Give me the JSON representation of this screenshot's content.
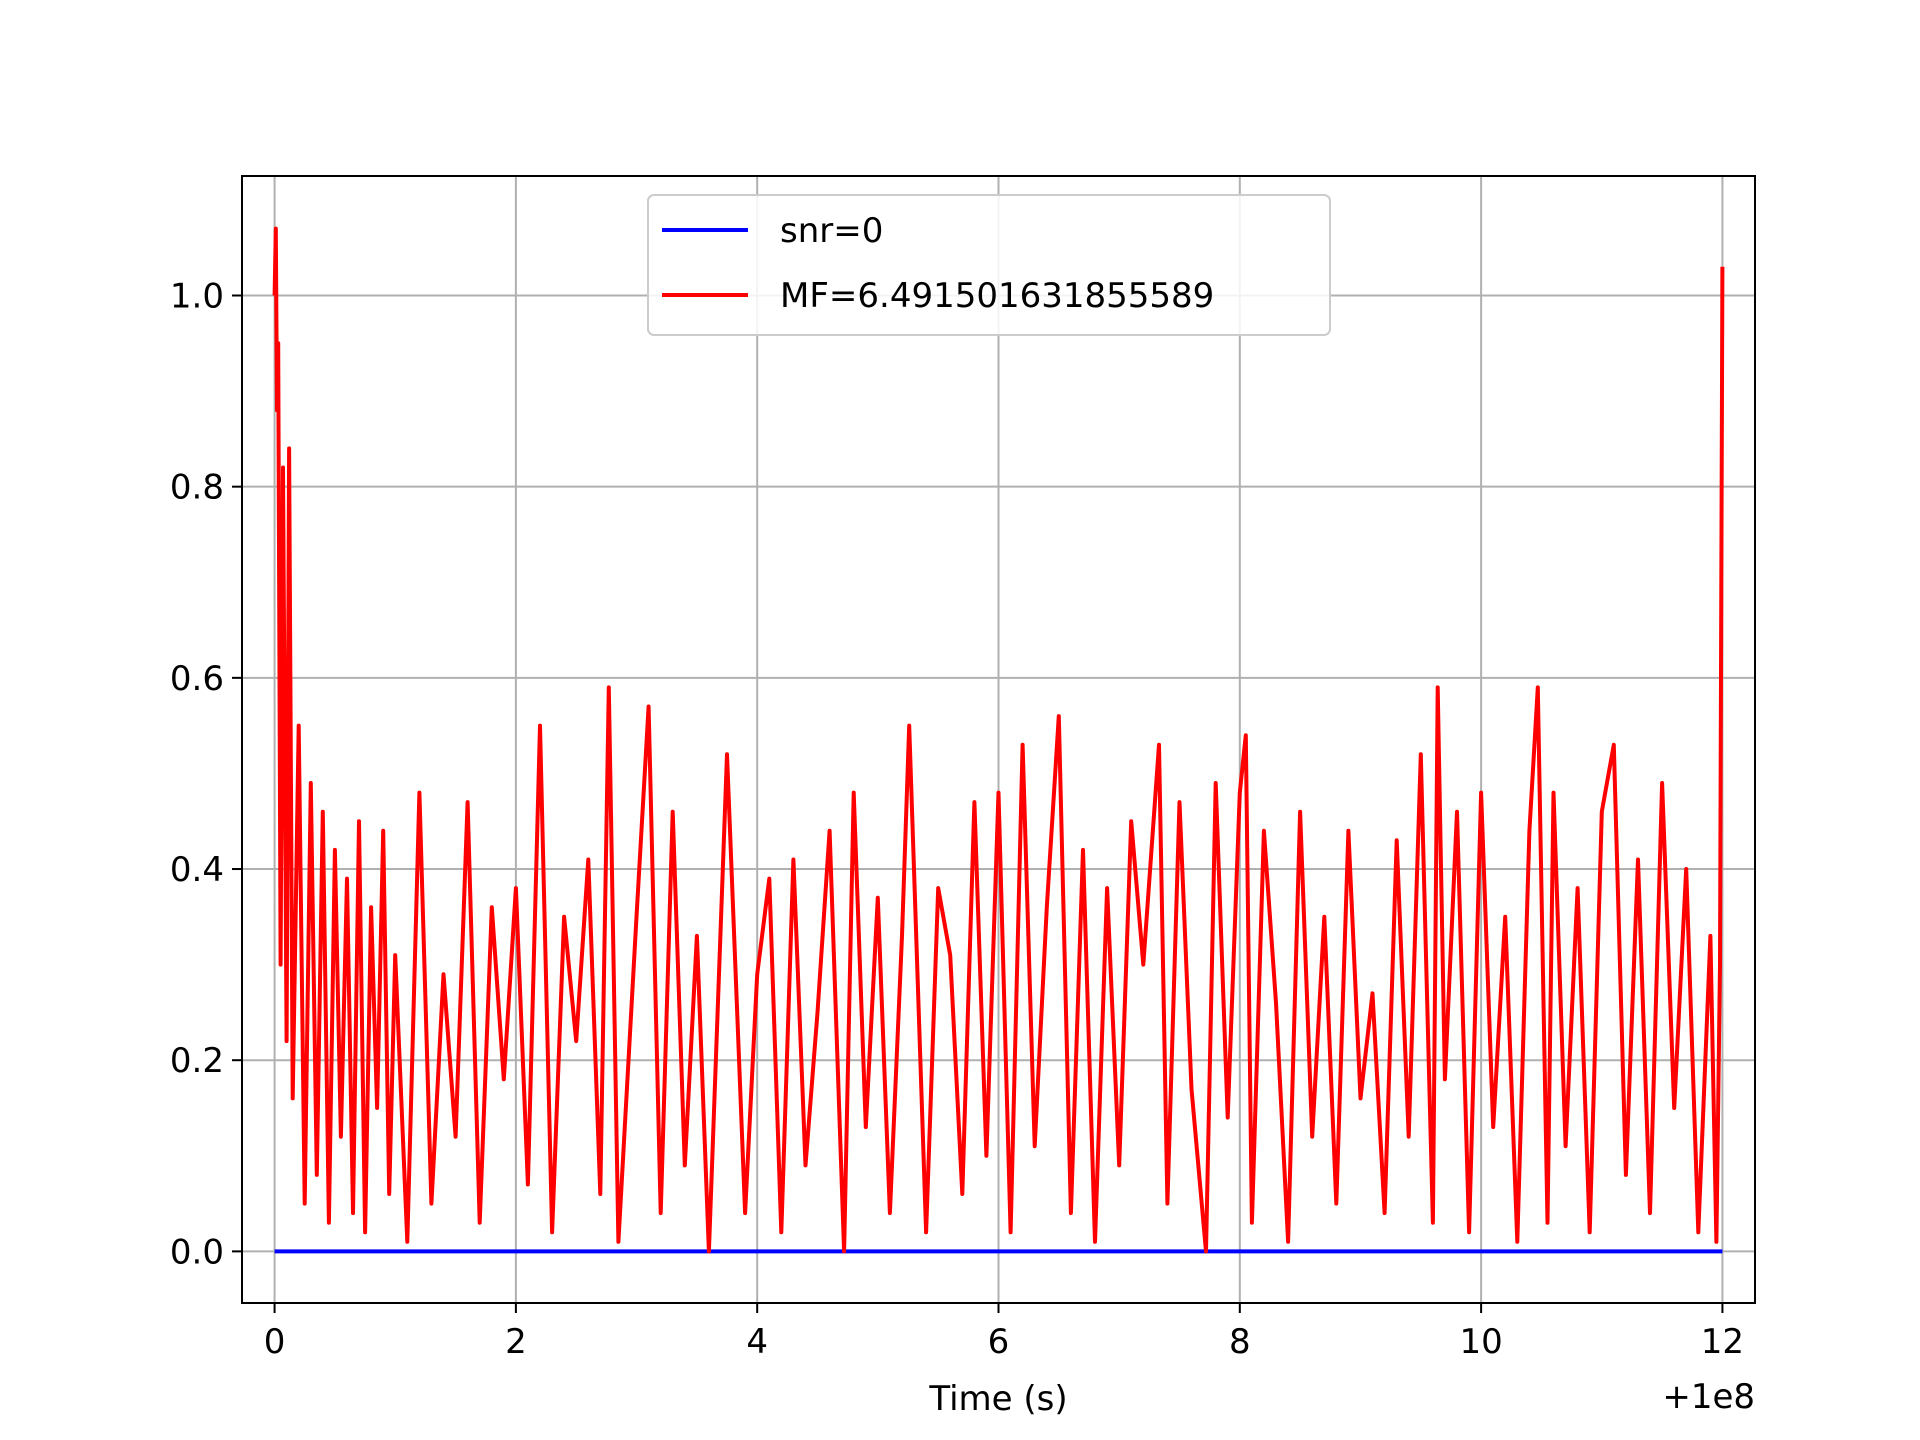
{
  "chart_data": {
    "type": "line",
    "title": "",
    "xlabel": "Time (s)",
    "ylabel": "",
    "x_offset_label": "+1e8",
    "xlim": [
      -0.27,
      12.27
    ],
    "ylim": [
      -0.054,
      1.125
    ],
    "xticks": [
      0,
      2,
      4,
      6,
      8,
      10,
      12
    ],
    "yticks": [
      0.0,
      0.2,
      0.4,
      0.6,
      0.8,
      1.0
    ],
    "xtick_labels": [
      "0",
      "2",
      "4",
      "6",
      "8",
      "10",
      "12"
    ],
    "ytick_labels": [
      "0.0",
      "0.2",
      "0.4",
      "0.6",
      "0.8",
      "1.0"
    ],
    "grid": true,
    "legend_placement": "upper-center",
    "series": [
      {
        "name": "snr=0",
        "color": "#0000ff",
        "x": [
          0,
          12
        ],
        "y": [
          0.0,
          0.0
        ]
      },
      {
        "name": "MF=6.491501631855589",
        "color": "#ff0000",
        "x": [
          0,
          0.01,
          0.02,
          0.03,
          0.05,
          0.07,
          0.1,
          0.12,
          0.15,
          0.2,
          0.25,
          0.3,
          0.35,
          0.4,
          0.45,
          0.5,
          0.55,
          0.6,
          0.65,
          0.7,
          0.75,
          0.8,
          0.85,
          0.9,
          0.95,
          1.0,
          1.1,
          1.2,
          1.3,
          1.4,
          1.5,
          1.6,
          1.7,
          1.8,
          1.9,
          2.0,
          2.1,
          2.2,
          2.3,
          2.4,
          2.5,
          2.6,
          2.7,
          2.77,
          2.85,
          3.0,
          3.1,
          3.2,
          3.3,
          3.4,
          3.5,
          3.6,
          3.75,
          3.9,
          4.0,
          4.1,
          4.2,
          4.3,
          4.4,
          4.5,
          4.6,
          4.72,
          4.8,
          4.9,
          5.0,
          5.1,
          5.2,
          5.26,
          5.4,
          5.5,
          5.6,
          5.7,
          5.8,
          5.9,
          6.0,
          6.1,
          6.2,
          6.3,
          6.4,
          6.5,
          6.6,
          6.7,
          6.8,
          6.9,
          7.0,
          7.1,
          7.2,
          7.33,
          7.4,
          7.5,
          7.6,
          7.72,
          7.8,
          7.9,
          8.0,
          8.05,
          8.1,
          8.2,
          8.3,
          8.4,
          8.5,
          8.6,
          8.7,
          8.8,
          8.9,
          9.0,
          9.1,
          9.2,
          9.3,
          9.4,
          9.5,
          9.6,
          9.64,
          9.7,
          9.8,
          9.9,
          10.0,
          10.1,
          10.2,
          10.3,
          10.4,
          10.47,
          10.55,
          10.6,
          10.7,
          10.8,
          10.9,
          11.0,
          11.1,
          11.2,
          11.3,
          11.4,
          11.5,
          11.6,
          11.7,
          11.8,
          11.9,
          11.95,
          11.98,
          12.0
        ],
        "y": [
          1.0,
          1.07,
          0.88,
          0.95,
          0.3,
          0.82,
          0.22,
          0.84,
          0.16,
          0.55,
          0.05,
          0.49,
          0.08,
          0.46,
          0.03,
          0.42,
          0.12,
          0.39,
          0.04,
          0.45,
          0.02,
          0.36,
          0.15,
          0.44,
          0.06,
          0.31,
          0.01,
          0.48,
          0.05,
          0.29,
          0.12,
          0.47,
          0.03,
          0.36,
          0.18,
          0.38,
          0.07,
          0.55,
          0.02,
          0.35,
          0.22,
          0.41,
          0.06,
          0.59,
          0.01,
          0.35,
          0.57,
          0.04,
          0.46,
          0.09,
          0.33,
          0.0,
          0.52,
          0.04,
          0.29,
          0.39,
          0.02,
          0.41,
          0.09,
          0.25,
          0.44,
          0.0,
          0.48,
          0.13,
          0.37,
          0.04,
          0.33,
          0.55,
          0.02,
          0.38,
          0.31,
          0.06,
          0.47,
          0.1,
          0.48,
          0.02,
          0.53,
          0.11,
          0.36,
          0.56,
          0.04,
          0.42,
          0.01,
          0.38,
          0.09,
          0.45,
          0.3,
          0.53,
          0.05,
          0.47,
          0.17,
          0.0,
          0.49,
          0.14,
          0.48,
          0.54,
          0.03,
          0.44,
          0.26,
          0.01,
          0.46,
          0.12,
          0.35,
          0.05,
          0.44,
          0.16,
          0.27,
          0.04,
          0.43,
          0.12,
          0.52,
          0.03,
          0.59,
          0.18,
          0.46,
          0.02,
          0.48,
          0.13,
          0.35,
          0.01,
          0.44,
          0.59,
          0.03,
          0.48,
          0.11,
          0.38,
          0.02,
          0.46,
          0.53,
          0.08,
          0.41,
          0.04,
          0.49,
          0.15,
          0.4,
          0.02,
          0.33,
          0.01,
          0.3,
          1.03
        ]
      }
    ]
  }
}
